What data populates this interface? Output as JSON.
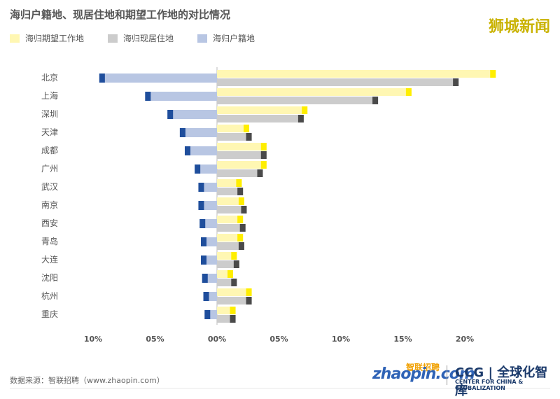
{
  "title": "海归户籍地、现居住地和期望工作地的对比情况",
  "watermark": "狮城新闻",
  "legend": [
    {
      "label": "海归期望工作地",
      "color": "#fff7b3"
    },
    {
      "label": "海归现居住地",
      "color": "#cccccc"
    },
    {
      "label": "海归户籍地",
      "color": "#b8c6e3"
    }
  ],
  "colors": {
    "expected": "#fff7b3",
    "expected_tip": "#ffee00",
    "current": "#cccccc",
    "current_tip": "#4a4a4a",
    "hukou": "#b8c6e3",
    "hukou_tip": "#1f4e9c"
  },
  "source": "数据来源：智联招聘（www.zhaopin.com）",
  "logos": {
    "zhaopin": "zhaopin.com",
    "zhaopin_cn": "智联招聘",
    "ccg": "CCG | 全球化智库",
    "ccg_sub": "CENTER FOR CHINA & GLOBALIZATION"
  },
  "chart_data": {
    "type": "bar",
    "orientation": "horizontal",
    "categories": [
      "北京",
      "上海",
      "深圳",
      "天津",
      "成都",
      "广州",
      "武汉",
      "南京",
      "西安",
      "青岛",
      "大连",
      "沈阳",
      "杭州",
      "重庆"
    ],
    "series": [
      {
        "name": "海归期望工作地",
        "values": [
          22.5,
          15.7,
          7.3,
          2.6,
          4.0,
          4.0,
          2.0,
          2.2,
          2.1,
          2.1,
          1.6,
          1.3,
          2.8,
          1.5
        ]
      },
      {
        "name": "海归现居住地",
        "values": [
          19.5,
          13.0,
          7.0,
          2.8,
          4.0,
          3.7,
          2.1,
          2.4,
          2.3,
          2.2,
          1.8,
          1.6,
          2.8,
          1.5
        ]
      },
      {
        "name": "海归户籍地",
        "values": [
          -9.5,
          -5.8,
          -4.0,
          -3.0,
          -2.6,
          -1.8,
          -1.5,
          -1.5,
          -1.4,
          -1.3,
          -1.3,
          -1.2,
          -1.1,
          -1.0
        ]
      }
    ],
    "x_tick_values": [
      -10,
      -5,
      0,
      5,
      10,
      15,
      20
    ],
    "x_tick_labels": [
      "10%",
      "05%",
      "00%",
      "05%",
      "10%",
      "15%",
      "20%"
    ],
    "xlim": [
      -10.6,
      23
    ],
    "grid": false,
    "legend": "top-left"
  }
}
